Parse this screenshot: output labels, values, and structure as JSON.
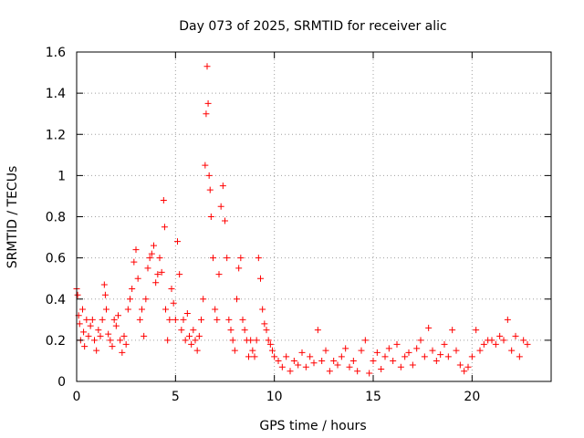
{
  "chart_data": {
    "type": "scatter",
    "title": "Day 073 of 2025, SRMTID for receiver alic",
    "xlabel": "GPS time / hours",
    "ylabel": "SRMTID / TECUs",
    "xlim": [
      0,
      24
    ],
    "ylim": [
      0,
      1.6
    ],
    "x_ticks": [
      0,
      5,
      10,
      15,
      20
    ],
    "x_tick_labels": [
      "0",
      "5",
      "10",
      "15",
      "20"
    ],
    "y_ticks": [
      0,
      0.2,
      0.4,
      0.6,
      0.8,
      1.0,
      1.2,
      1.4,
      1.6
    ],
    "y_tick_labels": [
      "0",
      "0.2",
      "0.4",
      "0.6",
      "0.8",
      "1",
      "1.2",
      "1.4",
      "1.6"
    ],
    "grid": true,
    "marker": "plus",
    "color": "#ff0000",
    "series": [
      {
        "name": "SRMTID",
        "points": [
          [
            0.0,
            0.45
          ],
          [
            0.05,
            0.42
          ],
          [
            0.1,
            0.32
          ],
          [
            0.15,
            0.28
          ],
          [
            0.2,
            0.2
          ],
          [
            0.3,
            0.35
          ],
          [
            0.35,
            0.24
          ],
          [
            0.4,
            0.17
          ],
          [
            0.5,
            0.3
          ],
          [
            0.6,
            0.22
          ],
          [
            0.7,
            0.27
          ],
          [
            0.8,
            0.3
          ],
          [
            0.9,
            0.2
          ],
          [
            1.0,
            0.15
          ],
          [
            1.1,
            0.25
          ],
          [
            1.2,
            0.22
          ],
          [
            1.3,
            0.3
          ],
          [
            1.4,
            0.47
          ],
          [
            1.45,
            0.42
          ],
          [
            1.5,
            0.35
          ],
          [
            1.6,
            0.23
          ],
          [
            1.7,
            0.2
          ],
          [
            1.8,
            0.17
          ],
          [
            1.9,
            0.3
          ],
          [
            2.0,
            0.27
          ],
          [
            2.1,
            0.32
          ],
          [
            2.2,
            0.2
          ],
          [
            2.3,
            0.14
          ],
          [
            2.4,
            0.22
          ],
          [
            2.5,
            0.18
          ],
          [
            2.6,
            0.35
          ],
          [
            2.7,
            0.4
          ],
          [
            2.8,
            0.45
          ],
          [
            2.9,
            0.58
          ],
          [
            3.0,
            0.64
          ],
          [
            3.1,
            0.5
          ],
          [
            3.2,
            0.3
          ],
          [
            3.3,
            0.35
          ],
          [
            3.4,
            0.22
          ],
          [
            3.5,
            0.4
          ],
          [
            3.6,
            0.55
          ],
          [
            3.7,
            0.6
          ],
          [
            3.8,
            0.62
          ],
          [
            3.9,
            0.66
          ],
          [
            4.0,
            0.48
          ],
          [
            4.1,
            0.52
          ],
          [
            4.2,
            0.6
          ],
          [
            4.3,
            0.53
          ],
          [
            4.4,
            0.88
          ],
          [
            4.45,
            0.75
          ],
          [
            4.5,
            0.35
          ],
          [
            4.6,
            0.2
          ],
          [
            4.7,
            0.3
          ],
          [
            4.8,
            0.45
          ],
          [
            4.9,
            0.38
          ],
          [
            5.0,
            0.3
          ],
          [
            5.1,
            0.68
          ],
          [
            5.2,
            0.52
          ],
          [
            5.3,
            0.25
          ],
          [
            5.4,
            0.3
          ],
          [
            5.5,
            0.2
          ],
          [
            5.6,
            0.33
          ],
          [
            5.7,
            0.22
          ],
          [
            5.8,
            0.18
          ],
          [
            5.9,
            0.25
          ],
          [
            6.0,
            0.2
          ],
          [
            6.1,
            0.15
          ],
          [
            6.2,
            0.22
          ],
          [
            6.3,
            0.3
          ],
          [
            6.4,
            0.4
          ],
          [
            6.5,
            1.05
          ],
          [
            6.55,
            1.3
          ],
          [
            6.6,
            1.53
          ],
          [
            6.65,
            1.35
          ],
          [
            6.7,
            1.0
          ],
          [
            6.75,
            0.93
          ],
          [
            6.8,
            0.8
          ],
          [
            6.9,
            0.6
          ],
          [
            7.0,
            0.35
          ],
          [
            7.1,
            0.3
          ],
          [
            7.2,
            0.52
          ],
          [
            7.3,
            0.85
          ],
          [
            7.4,
            0.95
          ],
          [
            7.5,
            0.78
          ],
          [
            7.6,
            0.6
          ],
          [
            7.7,
            0.3
          ],
          [
            7.8,
            0.25
          ],
          [
            7.9,
            0.2
          ],
          [
            8.0,
            0.15
          ],
          [
            8.1,
            0.4
          ],
          [
            8.2,
            0.55
          ],
          [
            8.3,
            0.6
          ],
          [
            8.4,
            0.3
          ],
          [
            8.5,
            0.25
          ],
          [
            8.6,
            0.2
          ],
          [
            8.7,
            0.12
          ],
          [
            8.8,
            0.2
          ],
          [
            8.9,
            0.15
          ],
          [
            9.0,
            0.12
          ],
          [
            9.1,
            0.2
          ],
          [
            9.2,
            0.6
          ],
          [
            9.3,
            0.5
          ],
          [
            9.4,
            0.35
          ],
          [
            9.5,
            0.28
          ],
          [
            9.6,
            0.25
          ],
          [
            9.7,
            0.2
          ],
          [
            9.8,
            0.18
          ],
          [
            9.9,
            0.15
          ],
          [
            10.0,
            0.12
          ],
          [
            10.2,
            0.1
          ],
          [
            10.4,
            0.07
          ],
          [
            10.6,
            0.12
          ],
          [
            10.8,
            0.05
          ],
          [
            11.0,
            0.1
          ],
          [
            11.2,
            0.08
          ],
          [
            11.4,
            0.14
          ],
          [
            11.6,
            0.07
          ],
          [
            11.8,
            0.12
          ],
          [
            12.0,
            0.09
          ],
          [
            12.2,
            0.25
          ],
          [
            12.4,
            0.1
          ],
          [
            12.6,
            0.15
          ],
          [
            12.8,
            0.05
          ],
          [
            13.0,
            0.1
          ],
          [
            13.2,
            0.08
          ],
          [
            13.4,
            0.12
          ],
          [
            13.6,
            0.16
          ],
          [
            13.8,
            0.07
          ],
          [
            14.0,
            0.1
          ],
          [
            14.2,
            0.05
          ],
          [
            14.4,
            0.15
          ],
          [
            14.6,
            0.2
          ],
          [
            14.8,
            0.04
          ],
          [
            15.0,
            0.1
          ],
          [
            15.2,
            0.14
          ],
          [
            15.4,
            0.06
          ],
          [
            15.6,
            0.12
          ],
          [
            15.8,
            0.16
          ],
          [
            16.0,
            0.1
          ],
          [
            16.2,
            0.18
          ],
          [
            16.4,
            0.07
          ],
          [
            16.6,
            0.12
          ],
          [
            16.8,
            0.14
          ],
          [
            17.0,
            0.08
          ],
          [
            17.2,
            0.16
          ],
          [
            17.4,
            0.2
          ],
          [
            17.6,
            0.12
          ],
          [
            17.8,
            0.26
          ],
          [
            18.0,
            0.15
          ],
          [
            18.2,
            0.1
          ],
          [
            18.4,
            0.13
          ],
          [
            18.6,
            0.18
          ],
          [
            18.8,
            0.12
          ],
          [
            19.0,
            0.25
          ],
          [
            19.2,
            0.15
          ],
          [
            19.4,
            0.08
          ],
          [
            19.6,
            0.05
          ],
          [
            19.8,
            0.07
          ],
          [
            20.0,
            0.12
          ],
          [
            20.2,
            0.25
          ],
          [
            20.4,
            0.15
          ],
          [
            20.6,
            0.18
          ],
          [
            20.8,
            0.2
          ],
          [
            21.0,
            0.2
          ],
          [
            21.2,
            0.18
          ],
          [
            21.4,
            0.22
          ],
          [
            21.6,
            0.2
          ],
          [
            21.8,
            0.3
          ],
          [
            22.0,
            0.15
          ],
          [
            22.2,
            0.22
          ],
          [
            22.4,
            0.12
          ],
          [
            22.6,
            0.2
          ],
          [
            22.8,
            0.18
          ]
        ]
      }
    ]
  }
}
